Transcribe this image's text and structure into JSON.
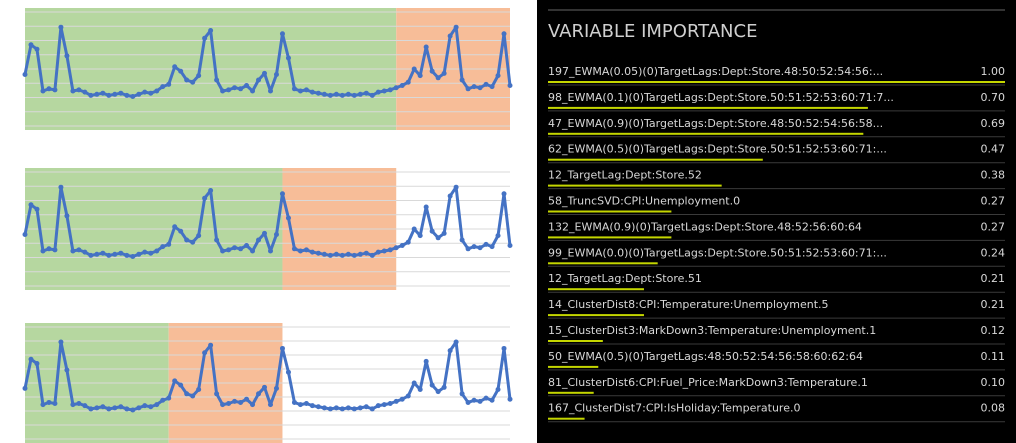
{
  "chart_data": [
    {
      "type": "line",
      "color": "#4472c4",
      "xlim": [
        0,
        81
      ],
      "ylim": [
        0,
        100
      ],
      "grid": true,
      "regions": [
        {
          "start": 0,
          "end": 62,
          "color": "#b6d7a0"
        },
        {
          "start": 62,
          "end": 81,
          "color": "#f7bd98"
        }
      ],
      "values": [
        45,
        72,
        68,
        30,
        32,
        31,
        88,
        62,
        30,
        31,
        29,
        26,
        27,
        28,
        26,
        27,
        28,
        26,
        25,
        27,
        29,
        28,
        30,
        34,
        36,
        52,
        48,
        40,
        38,
        44,
        78,
        85,
        40,
        30,
        31,
        33,
        32,
        35,
        30,
        40,
        46,
        30,
        45,
        82,
        60,
        32,
        30,
        31,
        29,
        28,
        27,
        26,
        27,
        26,
        27,
        26,
        27,
        28,
        26,
        29,
        30,
        31,
        33,
        35,
        38,
        50,
        44,
        70,
        48,
        42,
        46,
        80,
        88,
        40,
        32,
        34,
        33,
        36,
        34,
        44,
        82,
        35
      ]
    },
    {
      "type": "line",
      "color": "#4472c4",
      "xlim": [
        0,
        81
      ],
      "ylim": [
        0,
        100
      ],
      "grid": true,
      "regions": [
        {
          "start": 0,
          "end": 43,
          "color": "#b6d7a0"
        },
        {
          "start": 43,
          "end": 62,
          "color": "#f7bd98"
        }
      ],
      "values": [
        45,
        72,
        68,
        30,
        32,
        31,
        88,
        62,
        30,
        31,
        29,
        26,
        27,
        28,
        26,
        27,
        28,
        26,
        25,
        27,
        29,
        28,
        30,
        34,
        36,
        52,
        48,
        40,
        38,
        44,
        78,
        85,
        40,
        30,
        31,
        33,
        32,
        35,
        30,
        40,
        46,
        30,
        45,
        82,
        60,
        32,
        30,
        31,
        29,
        28,
        27,
        26,
        27,
        26,
        27,
        26,
        27,
        28,
        26,
        29,
        30,
        31,
        33,
        35,
        38,
        50,
        44,
        70,
        48,
        42,
        46,
        80,
        88,
        40,
        32,
        34,
        33,
        36,
        34,
        44,
        82,
        35
      ]
    },
    {
      "type": "line",
      "color": "#4472c4",
      "xlim": [
        0,
        81
      ],
      "ylim": [
        0,
        100
      ],
      "grid": true,
      "regions": [
        {
          "start": 0,
          "end": 24,
          "color": "#b6d7a0"
        },
        {
          "start": 24,
          "end": 43,
          "color": "#f7bd98"
        }
      ],
      "values": [
        45,
        72,
        68,
        30,
        32,
        31,
        88,
        62,
        30,
        31,
        29,
        26,
        27,
        28,
        26,
        27,
        28,
        26,
        25,
        27,
        29,
        28,
        30,
        34,
        36,
        52,
        48,
        40,
        38,
        44,
        78,
        85,
        40,
        30,
        31,
        33,
        32,
        35,
        30,
        40,
        46,
        30,
        45,
        82,
        60,
        32,
        30,
        31,
        29,
        28,
        27,
        26,
        27,
        26,
        27,
        26,
        27,
        28,
        26,
        29,
        30,
        31,
        33,
        35,
        38,
        50,
        44,
        70,
        48,
        42,
        46,
        80,
        88,
        40,
        32,
        34,
        33,
        36,
        34,
        44,
        82,
        35
      ]
    },
    {
      "type": "hbar",
      "title": "VARIABLE IMPORTANCE",
      "color": "#c4d600",
      "xlim": [
        0,
        1
      ],
      "categories": [
        "197_EWMA(0.05)(0)TargetLags:Dept:Store.48:50:52:54:56:...",
        "98_EWMA(0.1)(0)TargetLags:Dept:Store.50:51:52:53:60:71:7...",
        "47_EWMA(0.9)(0)TargetLags:Dept:Store.48:50:52:54:56:58...",
        "62_EWMA(0.5)(0)TargetLags:Dept:Store.50:51:52:53:60:71:...",
        "12_TargetLag:Dept:Store.52",
        "58_TruncSVD:CPI:Unemployment.0",
        "132_EWMA(0.9)(0)TargetLags:Dept:Store.48:52:56:60:64",
        "99_EWMA(0.0)(0)TargetLags:Dept:Store.50:51:52:53:60:71:...",
        "12_TargetLag:Dept:Store.51",
        "14_ClusterDist8:CPI:Temperature:Unemployment.5",
        "15_ClusterDist3:MarkDown3:Temperature:Unemployment.1",
        "50_EWMA(0.5)(0)TargetLags:48:50:52:54:56:58:60:62:64",
        "81_ClusterDist6:CPI:Fuel_Price:MarkDown3:Temperature.1",
        "167_ClusterDist7:CPI:IsHoliday:Temperature.0"
      ],
      "values": [
        1,
        0.7,
        0.69,
        0.47,
        0.38,
        0.27,
        0.27,
        0.24,
        0.21,
        0.21,
        0.12,
        0.11,
        0.1,
        0.08
      ],
      "value_labels": [
        "1.00",
        "0.70",
        "0.69",
        "0.47",
        "0.38",
        "0.27",
        "0.27",
        "0.24",
        "0.21",
        "0.21",
        "0.12",
        "0.11",
        "0.10",
        "0.08"
      ]
    }
  ]
}
